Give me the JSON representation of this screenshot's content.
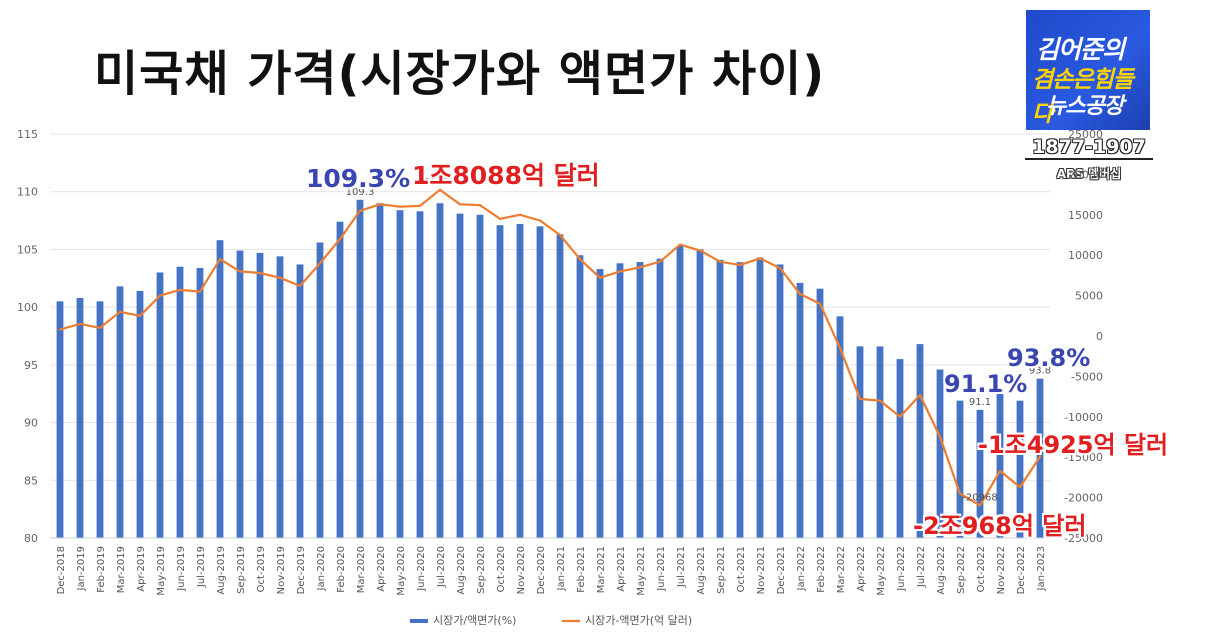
{
  "title": "미국채 가격(시장가와 액면가 차이)",
  "logo": {
    "line1": "김어준의",
    "line2": "겸손은힘들다",
    "line3": "뉴스공장",
    "years": "1877-1907",
    "sub": "ARS 멤버십",
    "bg_color": "#1f49c9"
  },
  "callouts": {
    "peak_pct": "109.3%",
    "peak_usd": "1조8088억 달러",
    "low_pct": "91.1%",
    "last_pct": "93.8%",
    "last_usd": "-1조4925억 달러",
    "low_usd": "-2조968억 달러"
  },
  "chart_data": {
    "type": "bar+line",
    "categories": [
      "Dec-2018",
      "Jan-2019",
      "Feb-2019",
      "Mar-2019",
      "Apr-2019",
      "May-2019",
      "Jun-2019",
      "Jul-2019",
      "Aug-2019",
      "Sep-2019",
      "Oct-2019",
      "Nov-2019",
      "Dec-2019",
      "Jan-2020",
      "Feb-2020",
      "Mar-2020",
      "Apr-2020",
      "May-2020",
      "Jun-2020",
      "Jul-2020",
      "Aug-2020",
      "Sep-2020",
      "Oct-2020",
      "Nov-2020",
      "Dec-2020",
      "Jan-2021",
      "Feb-2021",
      "Mar-2021",
      "Apr-2021",
      "May-2021",
      "Jun-2021",
      "Jul-2021",
      "Aug-2021",
      "Sep-2021",
      "Oct-2021",
      "Nov-2021",
      "Dec-2021",
      "Jan-2022",
      "Feb-2022",
      "Mar-2022",
      "Apr-2022",
      "May-2022",
      "Jun-2022",
      "Jul-2022",
      "Aug-2022",
      "Sep-2022",
      "Oct-2022",
      "Nov-2022",
      "Dec-2022",
      "Jan-2023"
    ],
    "series": [
      {
        "name": "시장가/액면가(%)",
        "type": "bar",
        "axis": "left",
        "color": "#4472c4",
        "values": [
          100.5,
          100.8,
          100.5,
          101.8,
          101.4,
          103.0,
          103.5,
          103.4,
          105.8,
          104.9,
          104.7,
          104.4,
          103.7,
          105.6,
          107.4,
          109.3,
          109.0,
          108.4,
          108.3,
          109.0,
          108.1,
          108.0,
          107.1,
          107.2,
          107.0,
          106.3,
          104.5,
          103.3,
          103.8,
          103.9,
          104.2,
          105.3,
          105.0,
          104.1,
          103.9,
          104.3,
          103.7,
          102.1,
          101.6,
          99.2,
          96.6,
          96.6,
          95.5,
          96.8,
          94.6,
          91.9,
          91.1,
          92.8,
          91.9,
          93.8
        ]
      },
      {
        "name": "시장가-액면가(억 달러)",
        "type": "line",
        "axis": "right",
        "color": "#ed7d31",
        "values": [
          800,
          1500,
          1000,
          3000,
          2500,
          5000,
          5700,
          5500,
          9500,
          8000,
          7800,
          7200,
          6200,
          9000,
          12000,
          15500,
          16300,
          16000,
          16100,
          18088,
          16300,
          16200,
          14500,
          15000,
          14300,
          12500,
          9500,
          7200,
          8000,
          8500,
          9200,
          11300,
          10600,
          9200,
          8800,
          9600,
          8400,
          5200,
          4000,
          -1500,
          -7800,
          -8000,
          -10000,
          -7300,
          -12500,
          -19500,
          -20968,
          -16700,
          -18700,
          -14925
        ]
      }
    ],
    "data_labels": [
      {
        "series": 0,
        "index": 15,
        "text": "109.3"
      },
      {
        "series": 1,
        "index": 19,
        "text": "18088"
      },
      {
        "series": 0,
        "index": 46,
        "text": "91.1"
      },
      {
        "series": 0,
        "index": 49,
        "text": "93.8"
      },
      {
        "series": 1,
        "index": 46,
        "text": "-20968"
      },
      {
        "series": 1,
        "index": 49,
        "text": "-14925"
      }
    ],
    "y_left": {
      "min": 80,
      "max": 115,
      "ticks": [
        "80",
        "85",
        "90",
        "95",
        "100",
        "105",
        "110",
        "115"
      ]
    },
    "y_right": {
      "min": -25000,
      "max": 25000,
      "ticks": [
        "-25000",
        "-20000",
        "-15000",
        "-10000",
        "-5000",
        "0",
        "5000",
        "10000",
        "15000",
        "20000",
        "25000"
      ]
    },
    "grid": true,
    "legend_position": "bottom"
  }
}
